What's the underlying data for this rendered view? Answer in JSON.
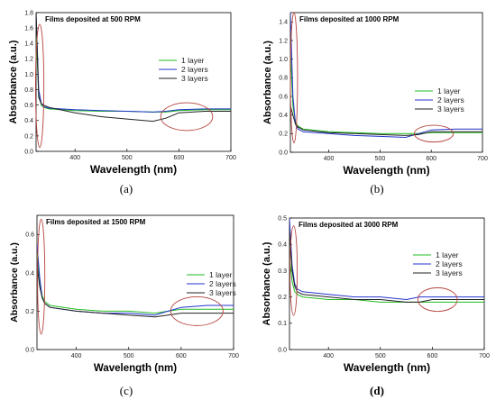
{
  "chart_data": [
    {
      "type": "line",
      "label": "(a)",
      "title": "Films deposited at 500 RPM",
      "xlabel": "Wavelength (nm)",
      "ylabel": "Absorbance (a.u.)",
      "xlim": [
        325,
        700
      ],
      "ylim": [
        0,
        1.8
      ],
      "xticks": [
        400,
        500,
        600,
        700
      ],
      "yticks": [
        0.0,
        0.2,
        0.4,
        0.6,
        0.8,
        1.0,
        1.2,
        1.4,
        1.6,
        1.8
      ],
      "colors": [
        "#22bb22",
        "#2233cc",
        "#222222"
      ],
      "series": [
        {
          "name": "1 layer",
          "x": [
            325,
            330,
            335,
            340,
            350,
            400,
            450,
            500,
            550,
            575,
            600,
            650,
            700
          ],
          "y": [
            1.5,
            0.75,
            0.6,
            0.57,
            0.55,
            0.53,
            0.52,
            0.52,
            0.51,
            0.51,
            0.53,
            0.54,
            0.54
          ]
        },
        {
          "name": "2 layers",
          "x": [
            325,
            330,
            335,
            340,
            350,
            400,
            450,
            500,
            550,
            575,
            600,
            650,
            700
          ],
          "y": [
            1.8,
            0.8,
            0.62,
            0.58,
            0.56,
            0.54,
            0.53,
            0.52,
            0.51,
            0.52,
            0.54,
            0.55,
            0.55
          ]
        },
        {
          "name": "3 layers",
          "x": [
            325,
            330,
            335,
            340,
            350,
            400,
            450,
            500,
            550,
            575,
            600,
            650,
            700
          ],
          "y": [
            1.8,
            0.7,
            0.62,
            0.6,
            0.57,
            0.5,
            0.45,
            0.42,
            0.39,
            0.43,
            0.5,
            0.52,
            0.52
          ]
        }
      ],
      "ellipses": [
        {
          "cx": 332,
          "cy": 0.85,
          "rx": 8,
          "ry": 0.8
        },
        {
          "cx": 615,
          "cy": 0.45,
          "rx": 50,
          "ry": 0.18
        }
      ]
    },
    {
      "type": "line",
      "label": "(b)",
      "title": "Films deposited at 1000 RPM",
      "xlabel": "Wavelength (nm)",
      "ylabel": "Absorbance (a.u.)",
      "xlim": [
        325,
        700
      ],
      "ylim": [
        0,
        1.5
      ],
      "xticks": [
        400,
        500,
        600,
        700
      ],
      "yticks": [
        0.0,
        0.2,
        0.4,
        0.6,
        0.8,
        1.0,
        1.2,
        1.4
      ],
      "colors": [
        "#22bb22",
        "#2233cc",
        "#222222"
      ],
      "series": [
        {
          "name": "1 layer",
          "x": [
            325,
            330,
            335,
            340,
            350,
            400,
            450,
            500,
            550,
            575,
            600,
            650,
            700
          ],
          "y": [
            1.1,
            0.5,
            0.32,
            0.28,
            0.25,
            0.22,
            0.21,
            0.2,
            0.2,
            0.2,
            0.21,
            0.21,
            0.21
          ]
        },
        {
          "name": "2 layers",
          "x": [
            325,
            330,
            335,
            340,
            350,
            400,
            450,
            500,
            550,
            575,
            600,
            650,
            700
          ],
          "y": [
            1.5,
            0.6,
            0.3,
            0.25,
            0.22,
            0.2,
            0.18,
            0.17,
            0.16,
            0.2,
            0.24,
            0.25,
            0.25
          ]
        },
        {
          "name": "3 layers",
          "x": [
            325,
            330,
            335,
            340,
            350,
            400,
            450,
            500,
            550,
            575,
            600,
            650,
            700
          ],
          "y": [
            0.5,
            0.4,
            0.3,
            0.27,
            0.24,
            0.21,
            0.2,
            0.19,
            0.18,
            0.19,
            0.22,
            0.22,
            0.22
          ]
        }
      ],
      "ellipses": [
        {
          "cx": 332,
          "cy": 0.8,
          "rx": 7,
          "ry": 0.7
        },
        {
          "cx": 605,
          "cy": 0.2,
          "rx": 38,
          "ry": 0.09
        }
      ]
    },
    {
      "type": "line",
      "label": "(c)",
      "title": "Films deposited at 1500 RPM",
      "xlabel": "Wavelength (nm)",
      "ylabel": "Absorbance (a.u.)",
      "xlim": [
        325,
        700
      ],
      "ylim": [
        0,
        0.7
      ],
      "xticks": [
        400,
        500,
        600,
        700
      ],
      "yticks": [
        0.0,
        0.2,
        0.4,
        0.6
      ],
      "colors": [
        "#22bb22",
        "#2233cc",
        "#222222"
      ],
      "series": [
        {
          "name": "1 layer",
          "x": [
            325,
            330,
            335,
            340,
            350,
            400,
            450,
            500,
            550,
            575,
            600,
            650,
            700
          ],
          "y": [
            0.5,
            0.35,
            0.28,
            0.25,
            0.23,
            0.21,
            0.2,
            0.2,
            0.19,
            0.2,
            0.21,
            0.21,
            0.21
          ]
        },
        {
          "name": "2 layers",
          "x": [
            325,
            330,
            335,
            340,
            350,
            400,
            450,
            500,
            550,
            575,
            600,
            650,
            700
          ],
          "y": [
            0.55,
            0.38,
            0.27,
            0.24,
            0.22,
            0.2,
            0.19,
            0.19,
            0.18,
            0.2,
            0.22,
            0.23,
            0.23
          ]
        },
        {
          "name": "3 layers",
          "x": [
            325,
            330,
            335,
            340,
            350,
            400,
            450,
            500,
            550,
            575,
            600,
            650,
            700
          ],
          "y": [
            0.45,
            0.33,
            0.27,
            0.24,
            0.22,
            0.2,
            0.19,
            0.18,
            0.17,
            0.18,
            0.19,
            0.19,
            0.19
          ]
        }
      ],
      "ellipses": [
        {
          "cx": 333,
          "cy": 0.38,
          "rx": 7,
          "ry": 0.3
        },
        {
          "cx": 630,
          "cy": 0.2,
          "rx": 50,
          "ry": 0.075
        }
      ]
    },
    {
      "type": "line",
      "label": "(d)",
      "title": "Films deposited at 3000 RPM",
      "xlabel": "Wavelength (nm)",
      "ylabel": "Absorbance (a.u.)",
      "xlim": [
        325,
        700
      ],
      "ylim": [
        0,
        0.5
      ],
      "xticks": [
        400,
        500,
        600,
        700
      ],
      "yticks": [
        0.0,
        0.1,
        0.2,
        0.3,
        0.4,
        0.5
      ],
      "colors": [
        "#22bb22",
        "#2233cc",
        "#222222"
      ],
      "series": [
        {
          "name": "1 layer",
          "x": [
            325,
            330,
            335,
            340,
            350,
            400,
            450,
            500,
            550,
            575,
            600,
            650,
            700
          ],
          "y": [
            0.35,
            0.26,
            0.22,
            0.21,
            0.2,
            0.19,
            0.19,
            0.18,
            0.18,
            0.18,
            0.18,
            0.18,
            0.18
          ]
        },
        {
          "name": "2 layers",
          "x": [
            325,
            330,
            335,
            340,
            350,
            400,
            450,
            500,
            550,
            575,
            600,
            650,
            700
          ],
          "y": [
            0.5,
            0.32,
            0.25,
            0.23,
            0.22,
            0.21,
            0.2,
            0.2,
            0.19,
            0.2,
            0.2,
            0.2,
            0.2
          ]
        },
        {
          "name": "3 layers",
          "x": [
            325,
            330,
            335,
            340,
            350,
            400,
            450,
            500,
            550,
            575,
            600,
            650,
            700
          ],
          "y": [
            0.45,
            0.3,
            0.24,
            0.22,
            0.21,
            0.2,
            0.19,
            0.19,
            0.18,
            0.18,
            0.19,
            0.19,
            0.19
          ]
        }
      ],
      "ellipses": [
        {
          "cx": 333,
          "cy": 0.3,
          "rx": 7,
          "ry": 0.17
        },
        {
          "cx": 610,
          "cy": 0.19,
          "rx": 38,
          "ry": 0.045
        }
      ]
    }
  ]
}
